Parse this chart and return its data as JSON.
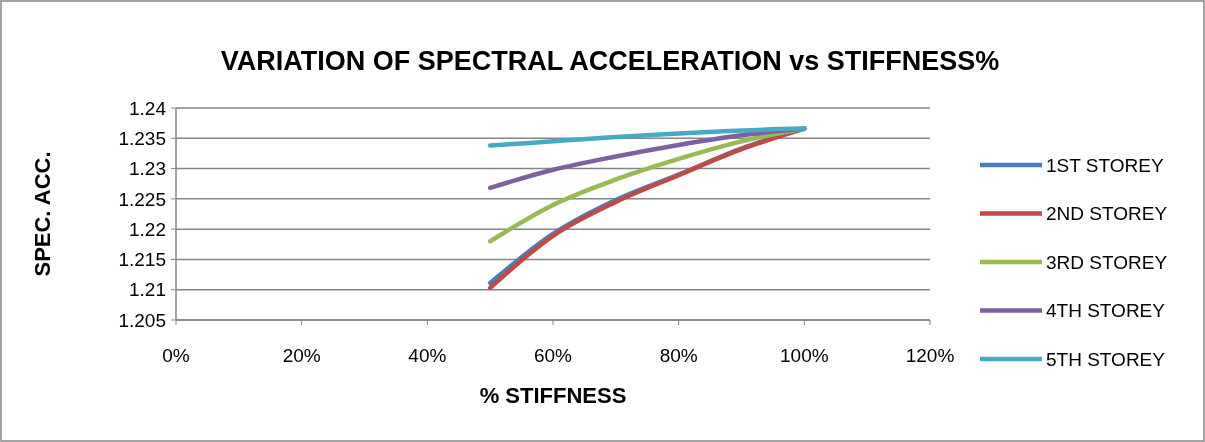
{
  "chart_data": {
    "type": "line",
    "title": "VARIATION OF SPECTRAL ACCELERATION  vs STIFFNESS%",
    "xlabel": "% STIFFNESS",
    "ylabel": "SPEC. ACC.",
    "x": [
      50,
      60,
      70,
      80,
      90,
      100
    ],
    "series": [
      {
        "name": "1ST STOREY",
        "color": "#4a7ebb",
        "values": [
          1.2111,
          1.2192,
          1.2248,
          1.229,
          1.2333,
          1.2366
        ]
      },
      {
        "name": "2ND STOREY",
        "color": "#be4b48",
        "values": [
          1.2103,
          1.2189,
          1.2245,
          1.2289,
          1.2332,
          1.2366
        ]
      },
      {
        "name": "3RD STOREY",
        "color": "#98b954",
        "values": [
          1.218,
          1.224,
          1.2282,
          1.2316,
          1.2345,
          1.2366
        ]
      },
      {
        "name": "4TH STOREY",
        "color": "#7d60a0",
        "values": [
          1.2268,
          1.2298,
          1.232,
          1.2339,
          1.2355,
          1.2366
        ]
      },
      {
        "name": "5TH STOREY",
        "color": "#46aac5",
        "values": [
          1.2338,
          1.2345,
          1.2352,
          1.2358,
          1.2363,
          1.2366
        ]
      }
    ],
    "xlim": [
      0,
      120
    ],
    "xticks": [
      {
        "value": 0,
        "label": "0%"
      },
      {
        "value": 20,
        "label": "20%"
      },
      {
        "value": 40,
        "label": "40%"
      },
      {
        "value": 60,
        "label": "60%"
      },
      {
        "value": 80,
        "label": "80%"
      },
      {
        "value": 100,
        "label": "100%"
      },
      {
        "value": 120,
        "label": "120%"
      }
    ],
    "ylim": [
      1.205,
      1.24
    ],
    "yticks": [
      1.205,
      1.21,
      1.215,
      1.22,
      1.225,
      1.23,
      1.235,
      1.24
    ],
    "grid": "y",
    "legend": "right",
    "marker": "none",
    "line_style": "solid"
  }
}
